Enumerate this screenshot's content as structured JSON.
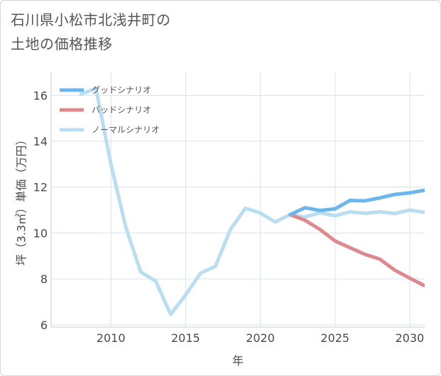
{
  "title_lines": [
    "石川県小松市北浅井町の",
    "土地の価格推移"
  ],
  "chart_data": {
    "type": "line",
    "title": "石川県小松市北浅井町の土地の価格推移",
    "xlabel": "年",
    "ylabel": "坪（3.3㎡）単価（万円）",
    "xlim": [
      2006,
      2031
    ],
    "ylim": [
      5.9,
      17.0
    ],
    "x_ticks": [
      2010,
      2015,
      2020,
      2025,
      2030
    ],
    "y_ticks": [
      6,
      8,
      10,
      12,
      14,
      16
    ],
    "grid": true,
    "legend_position": "top-left",
    "series": [
      {
        "name": "グッドシナリオ",
        "color": "#6bb6ec",
        "x": [
          2022,
          2023,
          2024,
          2025,
          2026,
          2027,
          2028,
          2029,
          2030,
          2031
        ],
        "y": [
          10.8,
          11.1,
          10.98,
          11.05,
          11.42,
          11.4,
          11.53,
          11.68,
          11.75,
          11.86
        ]
      },
      {
        "name": "バッドシナリオ",
        "color": "#dd8a8f",
        "x": [
          2022,
          2023,
          2024,
          2025,
          2026,
          2027,
          2028,
          2029,
          2030,
          2031
        ],
        "y": [
          10.8,
          10.55,
          10.15,
          9.65,
          9.36,
          9.07,
          8.86,
          8.38,
          8.03,
          7.7
        ]
      },
      {
        "name": "ノーマルシナリオ",
        "color": "#b8def0",
        "x": [
          2008,
          2009,
          2010,
          2011,
          2012,
          2013,
          2014,
          2015,
          2016,
          2017,
          2018,
          2019,
          2020,
          2021,
          2022,
          2023,
          2024,
          2025,
          2026,
          2027,
          2028,
          2029,
          2030,
          2031
        ],
        "y": [
          16.05,
          16.3,
          13.0,
          10.25,
          8.3,
          7.9,
          6.45,
          7.3,
          8.25,
          8.55,
          10.15,
          11.08,
          10.87,
          10.48,
          10.8,
          10.7,
          10.88,
          10.75,
          10.92,
          10.86,
          10.92,
          10.85,
          11.0,
          10.9
        ]
      }
    ]
  }
}
